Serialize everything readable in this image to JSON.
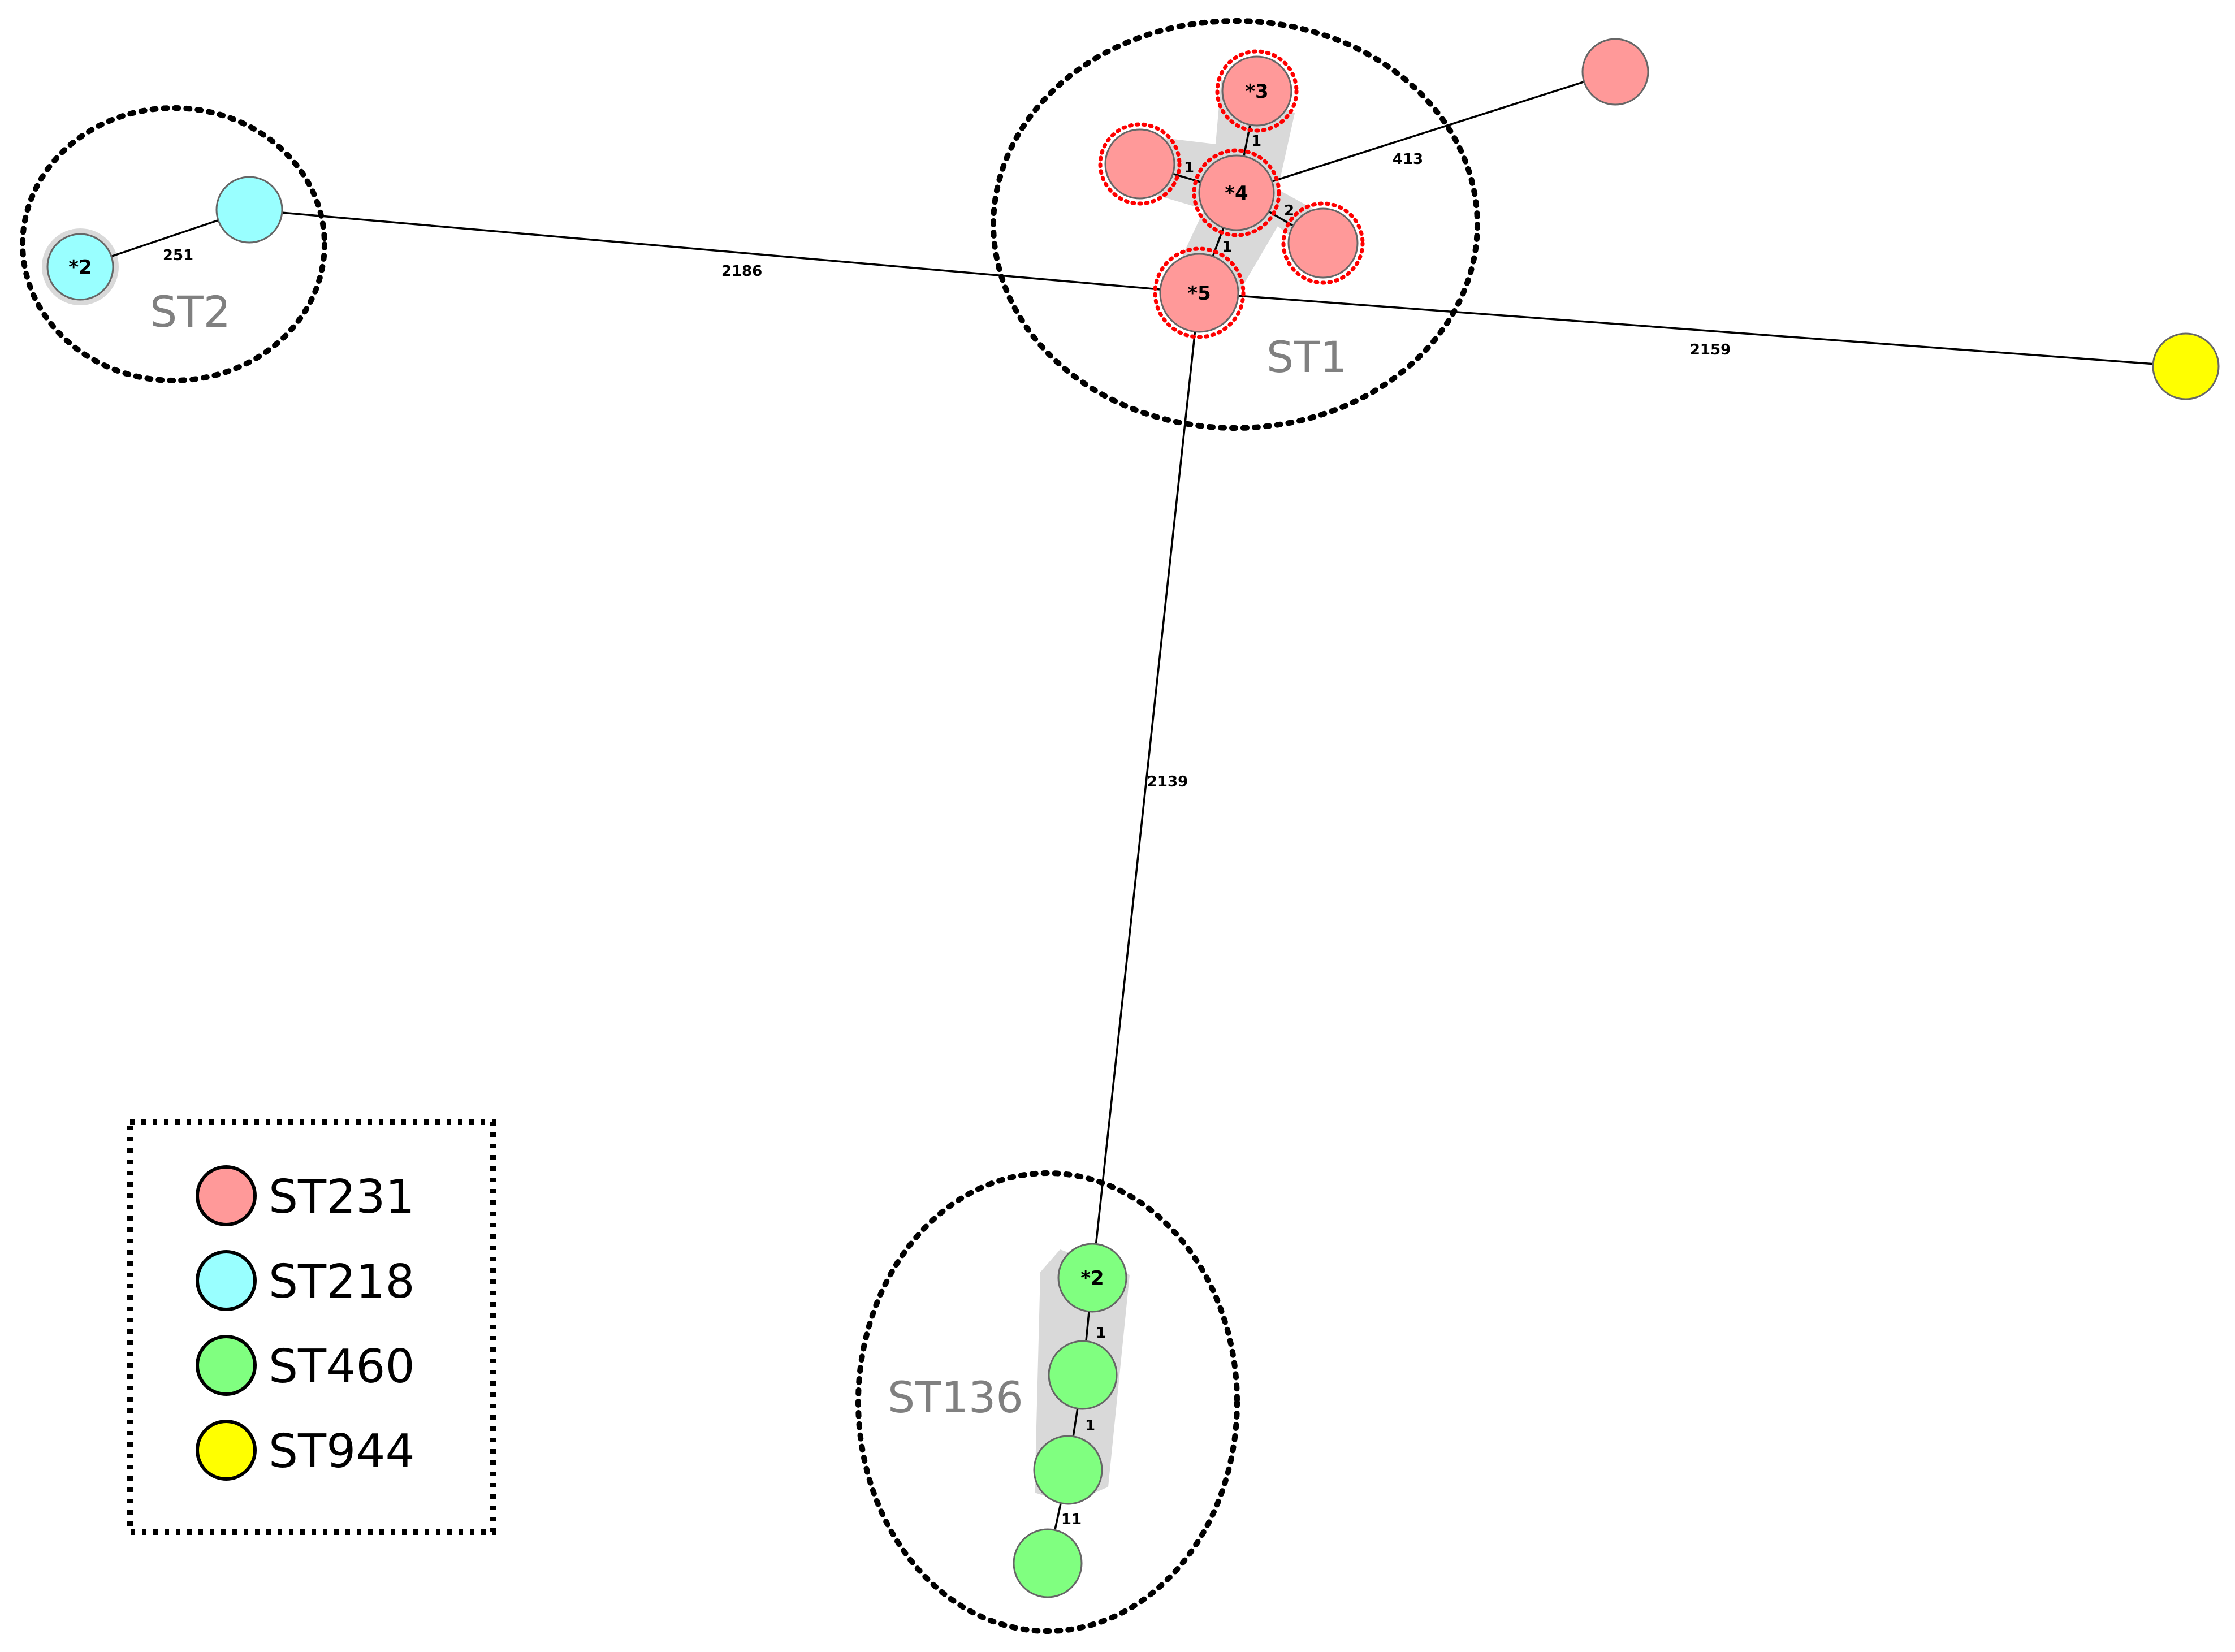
{
  "colors": {
    "ST231": "#ff9999",
    "ST218": "#99ffff",
    "ST460": "#80ff80",
    "ST944": "#ffff00",
    "ring_highlight": "#d9d9d9",
    "ring_dots": "#ff0000"
  },
  "clusters": [
    {
      "id": "ST2",
      "label": "ST2"
    },
    {
      "id": "ST1",
      "label": "ST1"
    },
    {
      "id": "ST136",
      "label": "ST136"
    }
  ],
  "nodes": [
    {
      "id": "st2-a",
      "group": "ST218",
      "label": "*2",
      "marked": false
    },
    {
      "id": "st2-b",
      "group": "ST218",
      "label": "",
      "marked": false
    },
    {
      "id": "st1-3",
      "group": "ST231",
      "label": "*3",
      "marked": true
    },
    {
      "id": "st1-l",
      "group": "ST231",
      "label": "",
      "marked": true
    },
    {
      "id": "st1-4",
      "group": "ST231",
      "label": "*4",
      "marked": true
    },
    {
      "id": "st1-r",
      "group": "ST231",
      "label": "",
      "marked": true
    },
    {
      "id": "st1-5",
      "group": "ST231",
      "label": "*5",
      "marked": true
    },
    {
      "id": "far-pink",
      "group": "ST231",
      "label": "",
      "marked": false
    },
    {
      "id": "far-yellow",
      "group": "ST944",
      "label": "",
      "marked": false
    },
    {
      "id": "st136-2",
      "group": "ST460",
      "label": "*2",
      "marked": false
    },
    {
      "id": "st136-b",
      "group": "ST460",
      "label": "",
      "marked": false
    },
    {
      "id": "st136-c",
      "group": "ST460",
      "label": "",
      "marked": false
    },
    {
      "id": "st136-d",
      "group": "ST460",
      "label": "",
      "marked": false
    }
  ],
  "edges": [
    {
      "from": "st2-a",
      "to": "st2-b",
      "label": "251"
    },
    {
      "from": "st2-b",
      "to": "st1-5",
      "label": "2186"
    },
    {
      "from": "st1-5",
      "to": "far-yellow",
      "label": "2159"
    },
    {
      "from": "st1-4",
      "to": "far-pink",
      "label": "413"
    },
    {
      "from": "st1-3",
      "to": "st1-4",
      "label": "1"
    },
    {
      "from": "st1-l",
      "to": "st1-4",
      "label": "1"
    },
    {
      "from": "st1-4",
      "to": "st1-r",
      "label": "2"
    },
    {
      "from": "st1-5",
      "to": "st1-4",
      "label": "1"
    },
    {
      "from": "st1-5",
      "to": "st136-2",
      "label": "2139"
    },
    {
      "from": "st136-2",
      "to": "st136-b",
      "label": "1"
    },
    {
      "from": "st136-b",
      "to": "st136-c",
      "label": "1"
    },
    {
      "from": "st136-c",
      "to": "st136-d",
      "label": "11"
    }
  ],
  "legend": [
    {
      "label": "ST231",
      "color": "#ff9999"
    },
    {
      "label": "ST218",
      "color": "#99ffff"
    },
    {
      "label": "ST460",
      "color": "#80ff80"
    },
    {
      "label": "ST944",
      "color": "#ffff00"
    }
  ]
}
